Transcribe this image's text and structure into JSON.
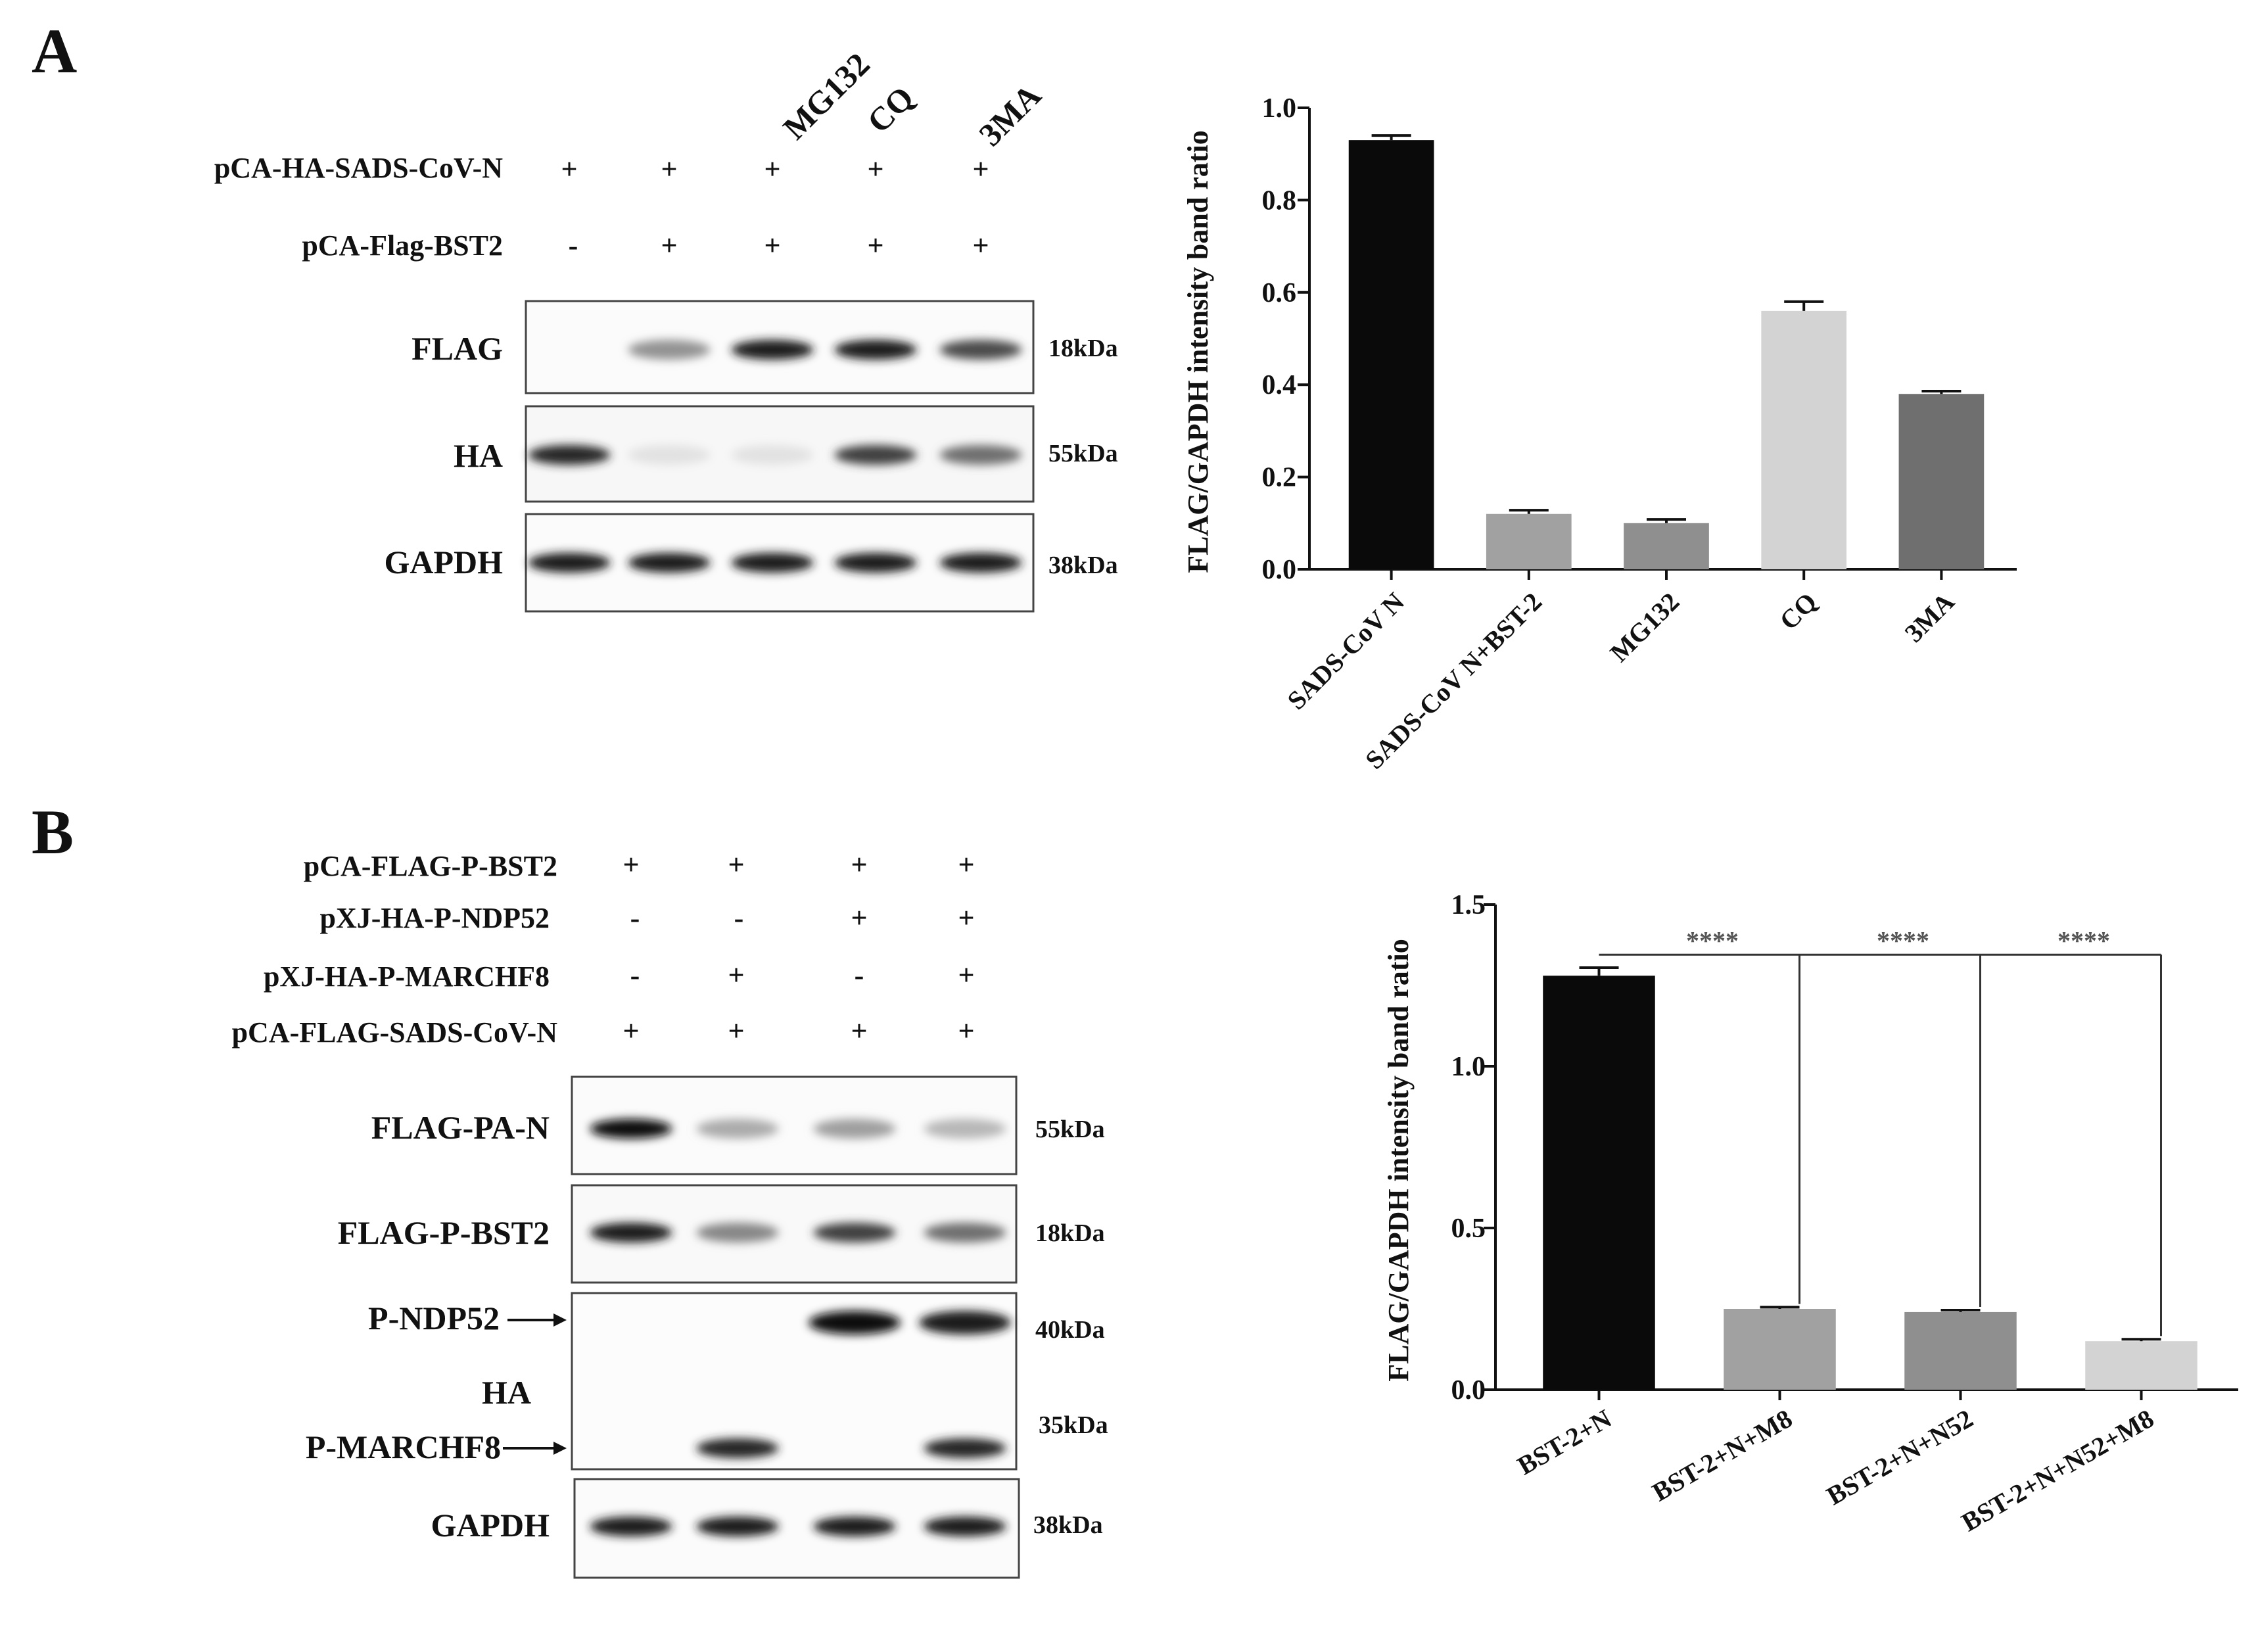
{
  "panelA": {
    "letter": "A",
    "treatments": [
      "MG132",
      "CQ",
      "3MA"
    ],
    "plasmid_rows": [
      {
        "label": "pCA-HA-SADS-CoV-N",
        "signs": [
          "+",
          "+",
          "+",
          "+",
          "+"
        ]
      },
      {
        "label": "pCA-Flag-BST2",
        "signs": [
          "-",
          "+",
          "+",
          "+",
          "+"
        ]
      }
    ],
    "blots": [
      {
        "label": "FLAG",
        "kda": "18kDa",
        "band_intensity": [
          0.0,
          0.45,
          0.95,
          0.95,
          0.75
        ]
      },
      {
        "label": "HA",
        "kda": "55kDa",
        "band_intensity": [
          0.9,
          0.12,
          0.12,
          0.8,
          0.6
        ]
      },
      {
        "label": "GAPDH",
        "kda": "38kDa",
        "band_intensity": [
          0.95,
          0.95,
          0.95,
          0.95,
          0.95
        ]
      }
    ]
  },
  "panelB": {
    "letter": "B",
    "plasmid_rows": [
      {
        "label": "pCA-FLAG-P-BST2",
        "signs": [
          "+",
          "+",
          "+",
          "+"
        ]
      },
      {
        "label": "pXJ-HA-P-NDP52",
        "signs": [
          "-",
          "-",
          "+",
          "+"
        ]
      },
      {
        "label": "pXJ-HA-P-MARCHF8",
        "signs": [
          "-",
          "+",
          "-",
          "+"
        ]
      },
      {
        "label": "pCA-FLAG-SADS-CoV-N",
        "signs": [
          "+",
          "+",
          "+",
          "+"
        ]
      }
    ],
    "blots": [
      {
        "label": "FLAG-PA-N",
        "kda": "55kDa",
        "band_intensity": [
          1.0,
          0.35,
          0.4,
          0.3
        ]
      },
      {
        "label": "FLAG-P-BST2",
        "kda": "18kDa",
        "band_intensity": [
          0.95,
          0.5,
          0.8,
          0.6
        ]
      },
      {
        "label": "GAPDH",
        "kda": "38kDa",
        "band_intensity": [
          0.95,
          0.95,
          0.95,
          0.95
        ]
      }
    ],
    "ha_blot": {
      "label": "HA",
      "ndp52_label": "P-NDP52",
      "march_label": "P-MARCHF8",
      "ndp52_kda": "40kDa",
      "march_kda": "35kDa",
      "ndp52_bands": [
        0,
        0,
        1.0,
        0.95
      ],
      "march_bands": [
        0,
        0.9,
        0,
        0.9
      ]
    }
  },
  "colors": {
    "black": "#0a0a0a",
    "light_gray": "#d3d3d3",
    "mid_gray": "#8f8f8f",
    "dark_gray": "#6f6f6f",
    "gray": "#a1a1a1"
  },
  "chart_data": [
    {
      "type": "bar",
      "ylabel": "FLAG/GAPDH intensity band ratio",
      "ylim": [
        0,
        1.0
      ],
      "yticks": [
        "0.0",
        "0.2",
        "0.4",
        "0.6",
        "0.8",
        "1.0"
      ],
      "categories": [
        "SADS-CoV N",
        "SADS-CoV N+BST-2",
        "MG132",
        "CQ",
        "3MA"
      ],
      "values": [
        0.93,
        0.12,
        0.1,
        0.56,
        0.38
      ],
      "errors": [
        0.01,
        0.008,
        0.008,
        0.02,
        0.006
      ],
      "bar_colors": [
        "#0a0a0a",
        "#a1a1a1",
        "#8f8f8f",
        "#d3d3d3",
        "#6f6f6f"
      ]
    },
    {
      "type": "bar",
      "ylabel": "FLAG/GAPDH intensity band ratio",
      "ylim": [
        0,
        1.5
      ],
      "yticks": [
        "0.0",
        "0.5",
        "1.0",
        "1.5"
      ],
      "categories": [
        "BST-2+N",
        "BST-2+N+M8",
        "BST-2+N+N52",
        "BST-2+N+N52+M8"
      ],
      "values": [
        1.28,
        0.25,
        0.24,
        0.15
      ],
      "errors": [
        0.025,
        0.005,
        0.006,
        0.006
      ],
      "bar_colors": [
        "#0a0a0a",
        "#a1a1a1",
        "#8f8f8f",
        "#d3d3d3"
      ],
      "annotations": [
        "****",
        "****",
        "****"
      ]
    }
  ]
}
